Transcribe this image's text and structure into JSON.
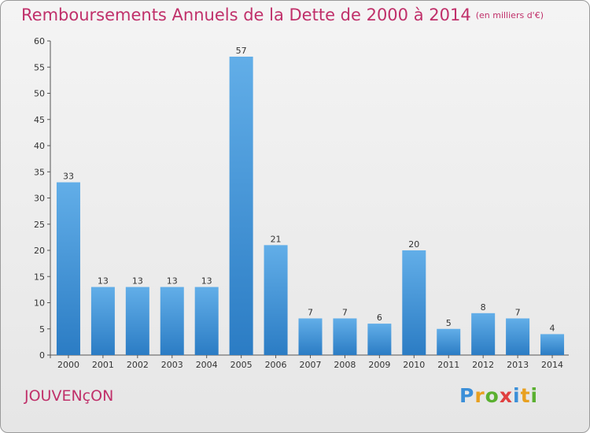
{
  "header": {
    "title": "Remboursements Annuels de la Dette de 2000 à 2014",
    "subtitle": "(en milliers d'€)"
  },
  "footer": {
    "commune": "JOUVENçON",
    "brand_letters": [
      {
        "ch": "P",
        "color": "#3b8fd8"
      },
      {
        "ch": "r",
        "color": "#e8a020"
      },
      {
        "ch": "o",
        "color": "#5ab030"
      },
      {
        "ch": "x",
        "color": "#e04040"
      },
      {
        "ch": "i",
        "color": "#3b8fd8"
      },
      {
        "ch": "t",
        "color": "#e8a020"
      },
      {
        "ch": "i",
        "color": "#5ab030"
      }
    ]
  },
  "colors": {
    "bar_light": "#62aee8",
    "bar_dark": "#2b7cc4",
    "title": "#c0306a"
  },
  "chart_data": {
    "type": "bar",
    "title": "Remboursements Annuels de la Dette de 2000 à 2014",
    "subtitle": "(en milliers d'€)",
    "xlabel": "",
    "ylabel": "",
    "categories": [
      "2000",
      "2001",
      "2002",
      "2003",
      "2004",
      "2005",
      "2006",
      "2007",
      "2008",
      "2009",
      "2010",
      "2011",
      "2012",
      "2013",
      "2014"
    ],
    "values": [
      33,
      13,
      13,
      13,
      13,
      57,
      21,
      7,
      7,
      6,
      20,
      5,
      8,
      7,
      4
    ],
    "ylim": [
      0,
      60
    ],
    "yticks": [
      0,
      5,
      10,
      15,
      20,
      25,
      30,
      35,
      40,
      45,
      50,
      55,
      60
    ],
    "grid": false,
    "data_labels": true
  }
}
